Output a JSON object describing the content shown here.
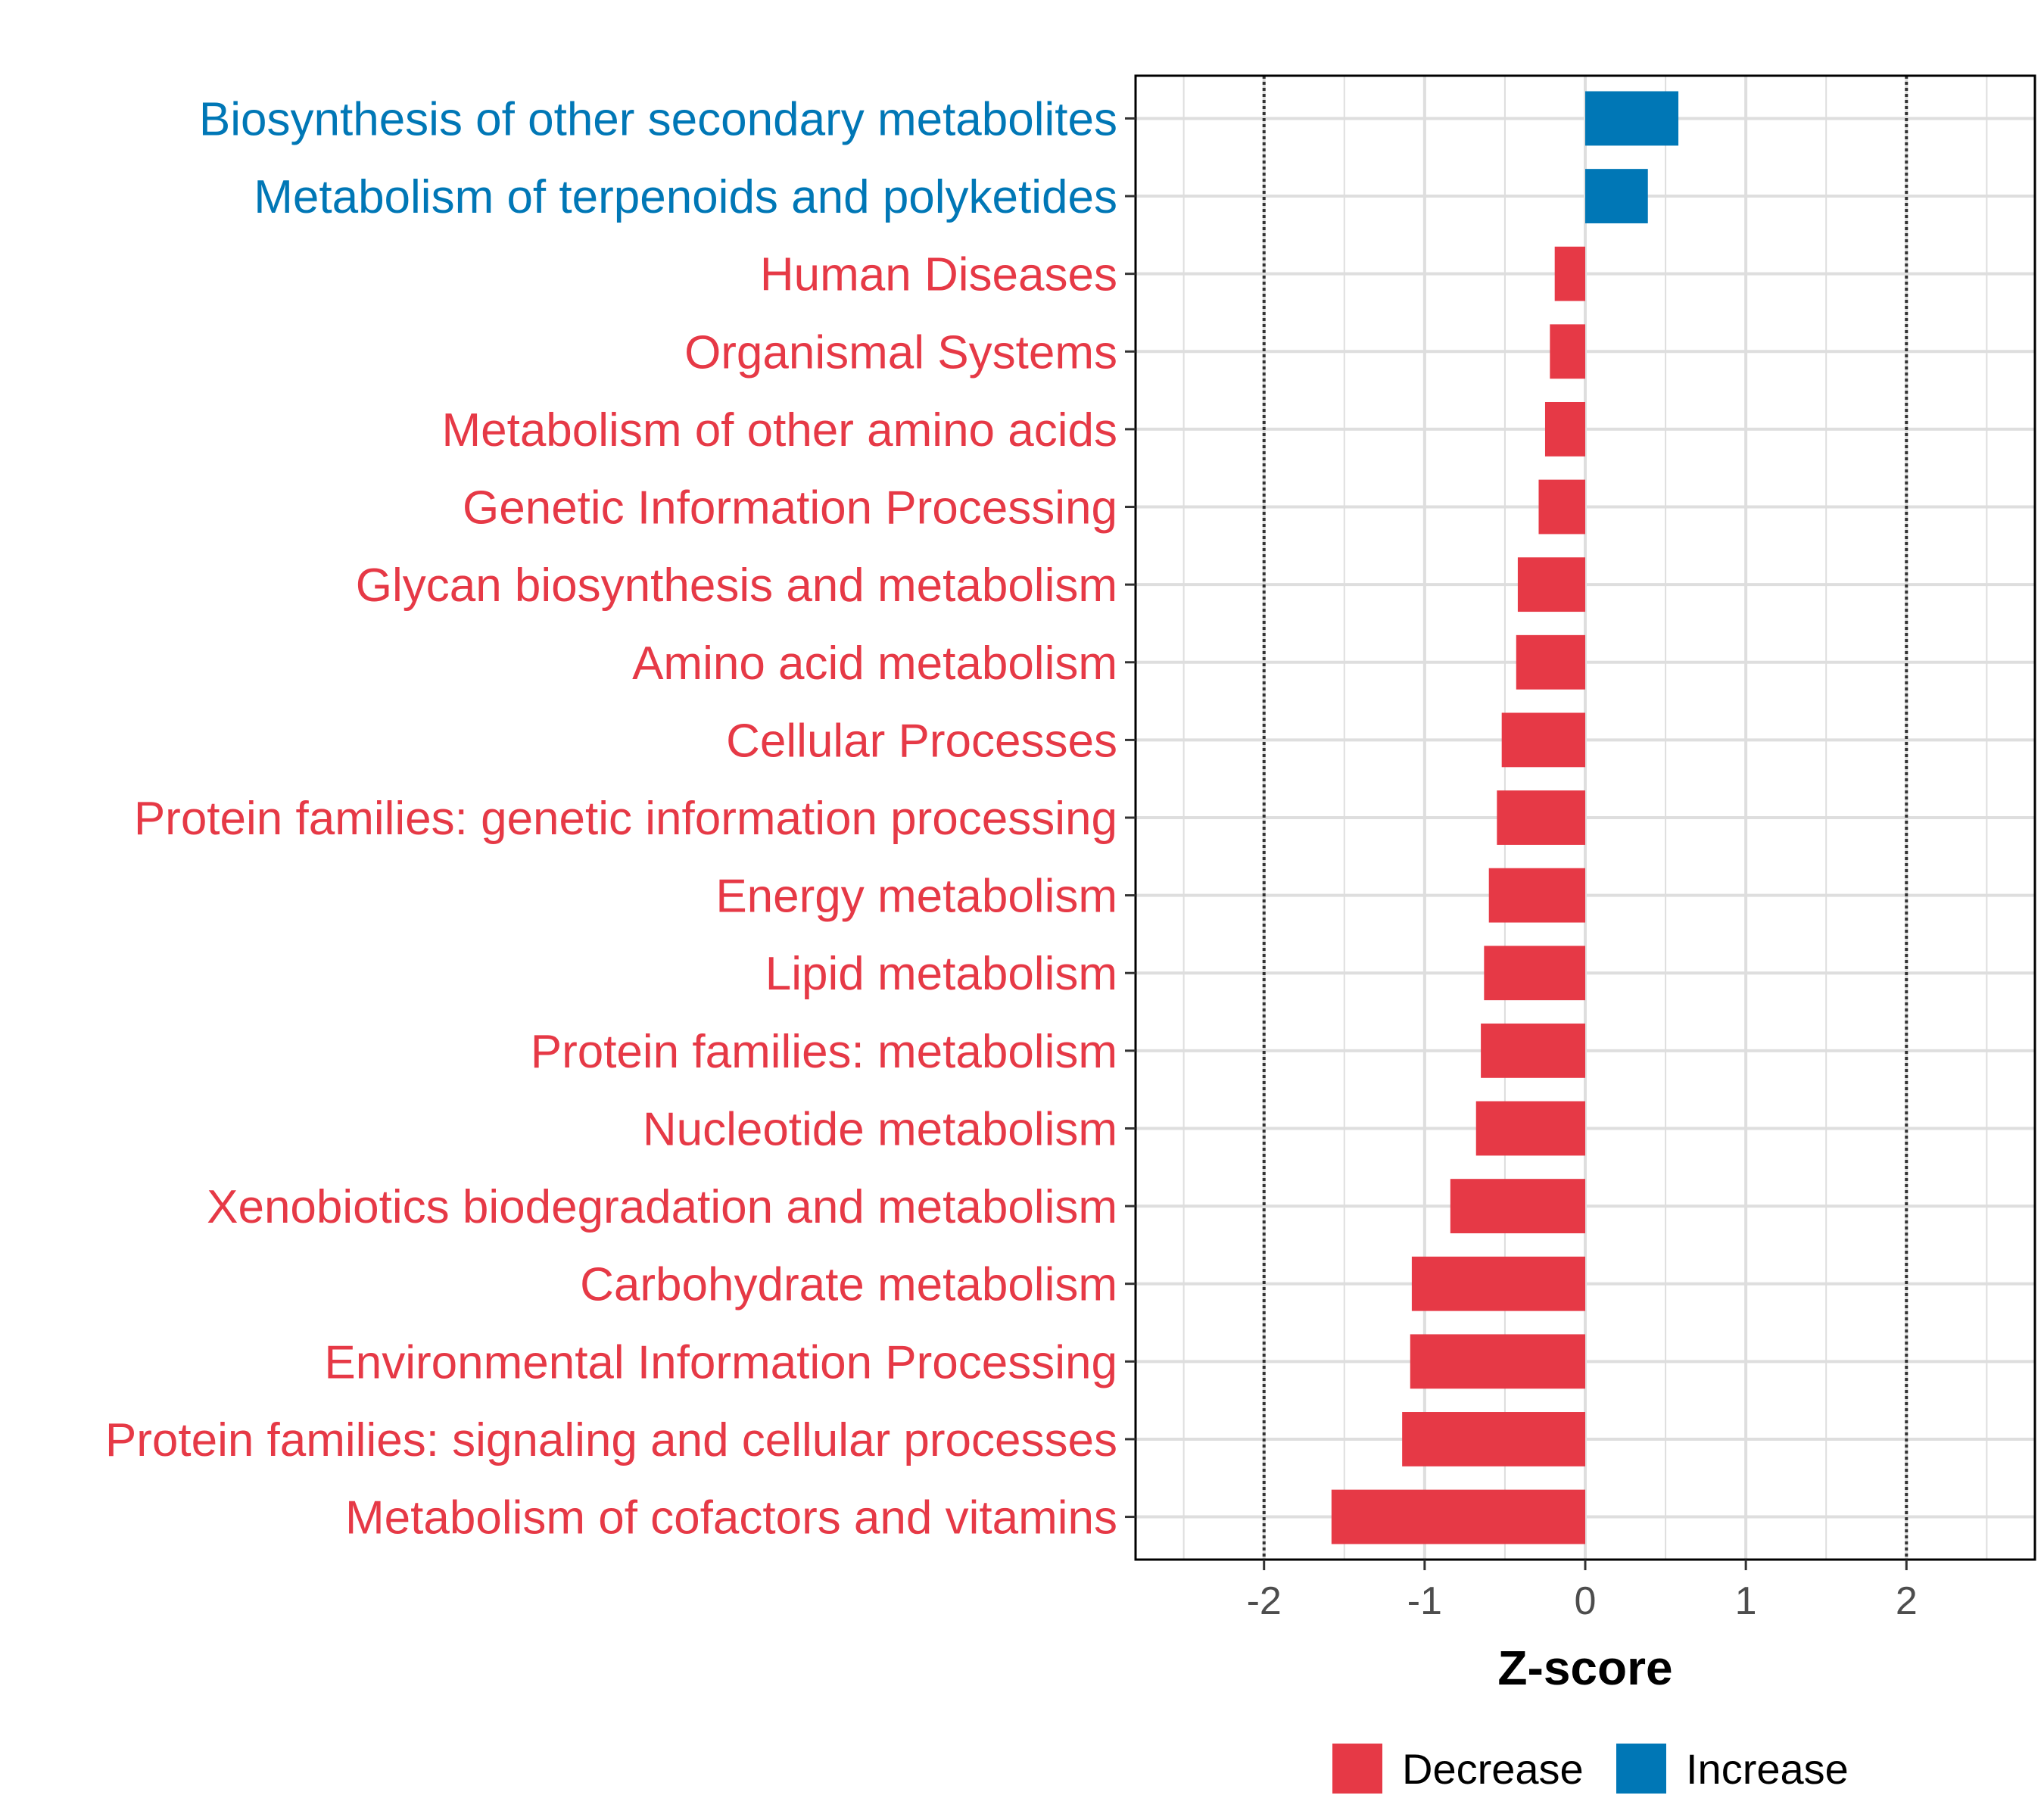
{
  "chart_data": {
    "type": "bar",
    "orientation": "horizontal",
    "title": "",
    "xlabel": "Z-score",
    "ylabel": "",
    "xlim": [
      -2.8,
      2.8
    ],
    "xticks": [
      -2,
      -1,
      0,
      1,
      2
    ],
    "xtick_labels": [
      "-2",
      "-1",
      "0",
      "1",
      "2"
    ],
    "reference_lines": [
      -2,
      2
    ],
    "grid": true,
    "categories": [
      "Biosynthesis of other secondary metabolites",
      "Metabolism of terpenoids and polyketides",
      "Human Diseases",
      "Organismal Systems",
      "Metabolism of other amino acids",
      "Genetic Information Processing",
      "Glycan biosynthesis and metabolism",
      "Amino acid metabolism",
      "Cellular Processes",
      "Protein families: genetic information processing",
      "Energy metabolism",
      "Lipid metabolism",
      "Protein families: metabolism",
      "Nucleotide metabolism",
      "Xenobiotics biodegradation and metabolism",
      "Carbohydrate metabolism",
      "Environmental Information Processing",
      "Protein families: signaling and cellular processes",
      "Metabolism of cofactors and vitamins"
    ],
    "values": [
      0.58,
      0.39,
      -0.19,
      -0.22,
      -0.25,
      -0.29,
      -0.42,
      -0.43,
      -0.52,
      -0.55,
      -0.6,
      -0.63,
      -0.65,
      -0.68,
      -0.84,
      -1.08,
      -1.09,
      -1.14,
      -1.58
    ],
    "groups": [
      "Increase",
      "Increase",
      "Decrease",
      "Decrease",
      "Decrease",
      "Decrease",
      "Decrease",
      "Decrease",
      "Decrease",
      "Decrease",
      "Decrease",
      "Decrease",
      "Decrease",
      "Decrease",
      "Decrease",
      "Decrease",
      "Decrease",
      "Decrease",
      "Decrease"
    ],
    "legend": {
      "position": "bottom",
      "entries": [
        {
          "label": "Decrease",
          "color": "#E63946"
        },
        {
          "label": "Increase",
          "color": "#0077B6"
        }
      ]
    },
    "colors": {
      "Decrease": "#E63946",
      "Increase": "#0077B6"
    }
  }
}
